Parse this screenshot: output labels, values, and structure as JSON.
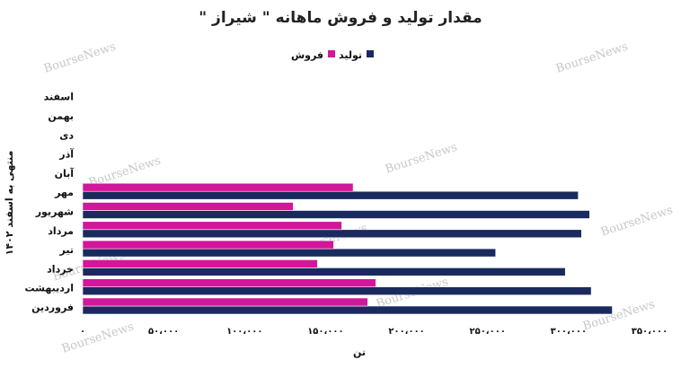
{
  "chart_data": {
    "type": "bar",
    "orientation": "horizontal",
    "title": "مقدار تولید و فروش ماهانه \" شیراز \"",
    "xlabel": "تن",
    "ylabel": "منتهی به اسفند ۱۴۰۲",
    "categories": [
      "فروردین",
      "اردیبهشت",
      "خرداد",
      "تیر",
      "مرداد",
      "شهریور",
      "مهر",
      "آبان",
      "آذر",
      "دی",
      "بهمن",
      "اسفند"
    ],
    "series": [
      {
        "name": "تولید",
        "color": "#1b2a5e",
        "values": [
          327000,
          314000,
          298000,
          255000,
          308000,
          313000,
          306000,
          null,
          null,
          null,
          null,
          null
        ]
      },
      {
        "name": "فروش",
        "color": "#d4169a",
        "values": [
          176000,
          181000,
          145000,
          155000,
          160000,
          130000,
          167000,
          null,
          null,
          null,
          null,
          null
        ]
      }
    ],
    "xlim": [
      0,
      350000
    ],
    "xticks": [
      0,
      50000,
      100000,
      150000,
      200000,
      250000,
      300000,
      350000
    ],
    "xtick_labels": [
      "۰",
      "۵۰،۰۰۰",
      "۱۰۰،۰۰۰",
      "۱۵۰،۰۰۰",
      "۲۰۰،۰۰۰",
      "۲۵۰،۰۰۰",
      "۳۰۰،۰۰۰",
      "۳۵۰،۰۰۰"
    ],
    "legend_position": "top",
    "grid": false
  },
  "watermark": "BourseNews"
}
